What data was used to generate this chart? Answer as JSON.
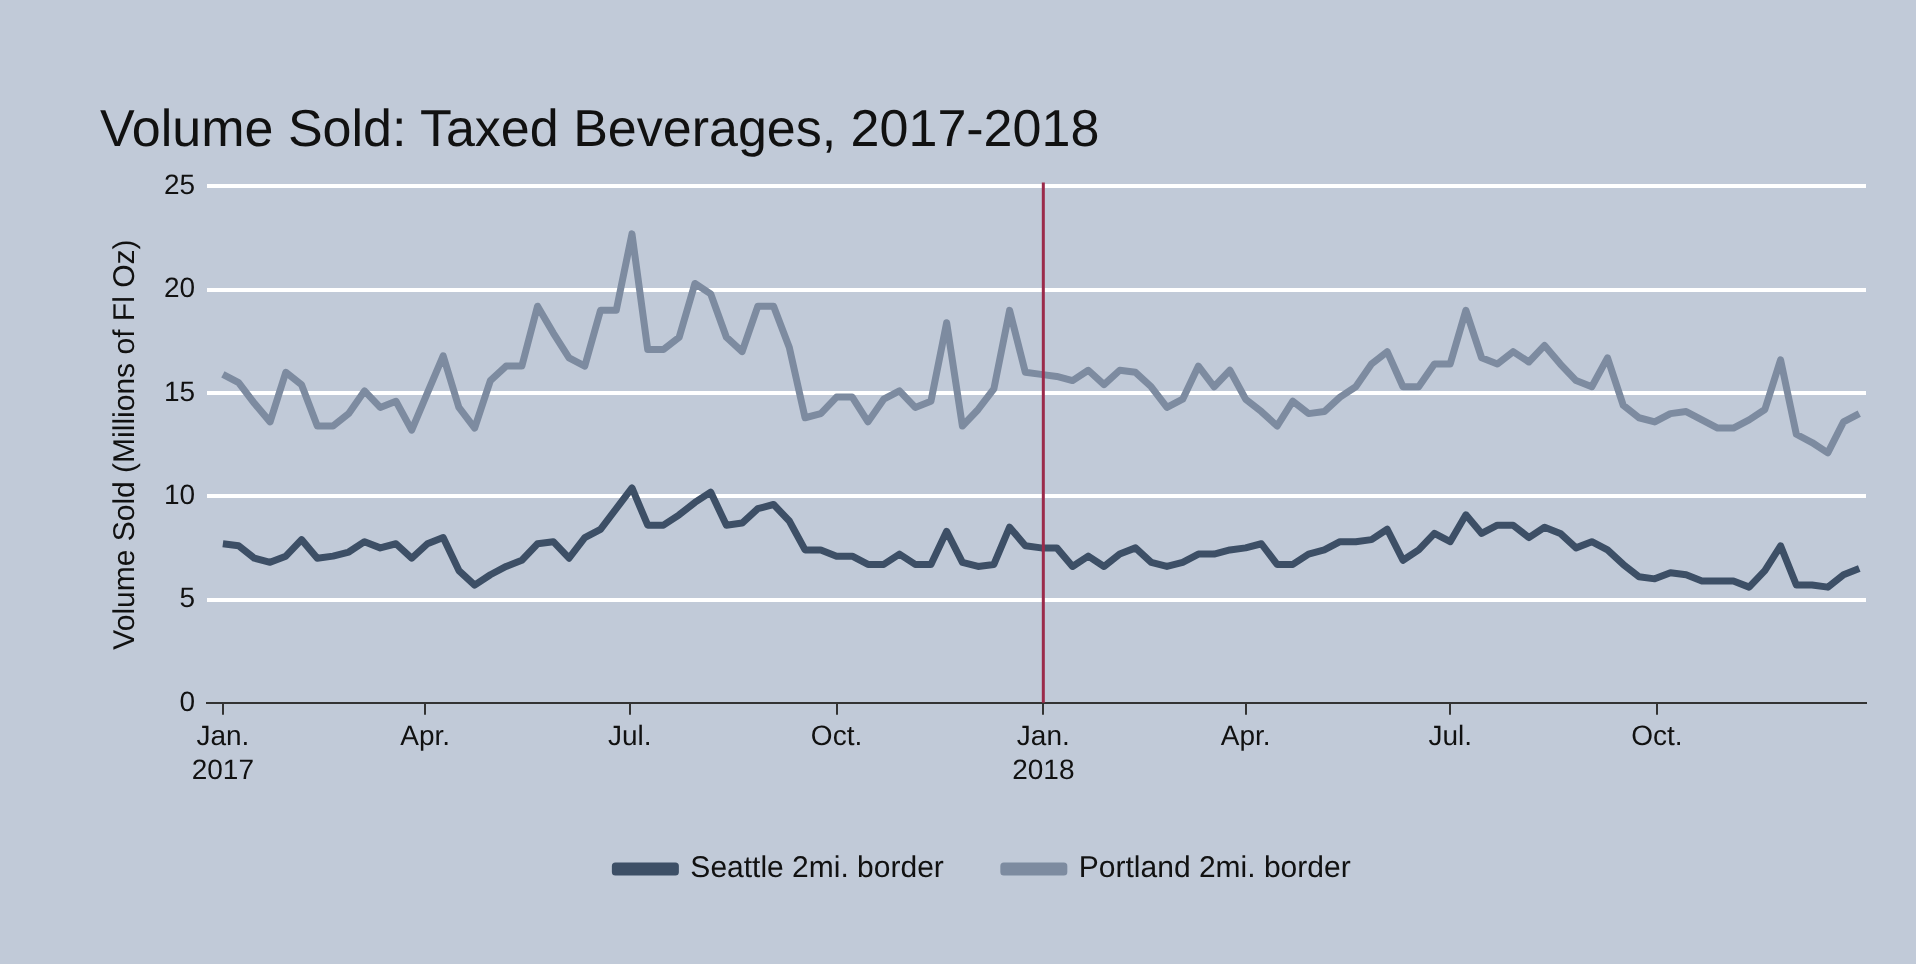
{
  "chart_data": {
    "type": "line",
    "title": "Volume Sold: Taxed Beverages, 2017-2018",
    "ylabel": "Volume Sold (Millions of Fl Oz)",
    "x": [
      "2017-01-01",
      "2017-01-08",
      "2017-01-15",
      "2017-01-22",
      "2017-01-29",
      "2017-02-05",
      "2017-02-12",
      "2017-02-19",
      "2017-02-26",
      "2017-03-05",
      "2017-03-12",
      "2017-03-19",
      "2017-03-26",
      "2017-04-02",
      "2017-04-09",
      "2017-04-16",
      "2017-04-23",
      "2017-04-30",
      "2017-05-07",
      "2017-05-14",
      "2017-05-21",
      "2017-05-28",
      "2017-06-04",
      "2017-06-11",
      "2017-06-18",
      "2017-06-25",
      "2017-07-02",
      "2017-07-09",
      "2017-07-16",
      "2017-07-23",
      "2017-07-30",
      "2017-08-06",
      "2017-08-13",
      "2017-08-20",
      "2017-08-27",
      "2017-09-03",
      "2017-09-10",
      "2017-09-17",
      "2017-09-24",
      "2017-10-01",
      "2017-10-08",
      "2017-10-15",
      "2017-10-22",
      "2017-10-29",
      "2017-11-05",
      "2017-11-12",
      "2017-11-19",
      "2017-11-26",
      "2017-12-03",
      "2017-12-10",
      "2017-12-17",
      "2017-12-24",
      "2017-12-31",
      "2018-01-07",
      "2018-01-14",
      "2018-01-21",
      "2018-01-28",
      "2018-02-04",
      "2018-02-11",
      "2018-02-18",
      "2018-02-25",
      "2018-03-04",
      "2018-03-11",
      "2018-03-18",
      "2018-03-25",
      "2018-04-01",
      "2018-04-08",
      "2018-04-15",
      "2018-04-22",
      "2018-04-29",
      "2018-05-06",
      "2018-05-13",
      "2018-05-20",
      "2018-05-27",
      "2018-06-03",
      "2018-06-10",
      "2018-06-17",
      "2018-06-24",
      "2018-07-01",
      "2018-07-08",
      "2018-07-15",
      "2018-07-22",
      "2018-07-29",
      "2018-08-05",
      "2018-08-12",
      "2018-08-19",
      "2018-08-26",
      "2018-09-02",
      "2018-09-09",
      "2018-09-16",
      "2018-09-23",
      "2018-09-30",
      "2018-10-07",
      "2018-10-14",
      "2018-10-21",
      "2018-10-28",
      "2018-11-04",
      "2018-11-11",
      "2018-11-18",
      "2018-11-25",
      "2018-12-02",
      "2018-12-09",
      "2018-12-16",
      "2018-12-23",
      "2018-12-30"
    ],
    "series": [
      {
        "name": "Seattle 2mi. border",
        "color": "#3d4f66",
        "values": [
          7.7,
          7.6,
          7.0,
          6.8,
          7.1,
          7.9,
          7.0,
          7.1,
          7.3,
          7.8,
          7.5,
          7.7,
          7.0,
          7.7,
          8.0,
          6.4,
          5.7,
          6.2,
          6.6,
          6.9,
          7.7,
          7.8,
          7.0,
          8.0,
          8.4,
          9.4,
          10.4,
          8.6,
          8.6,
          9.1,
          9.7,
          10.2,
          8.6,
          8.7,
          9.4,
          9.6,
          8.8,
          7.4,
          7.4,
          7.1,
          7.1,
          6.7,
          6.7,
          7.2,
          6.7,
          6.7,
          8.3,
          6.8,
          6.6,
          6.7,
          8.5,
          7.6,
          7.5,
          7.5,
          6.6,
          7.1,
          6.6,
          7.2,
          7.5,
          6.8,
          6.6,
          6.8,
          7.2,
          7.2,
          7.4,
          7.5,
          7.7,
          6.7,
          6.7,
          7.2,
          7.4,
          7.8,
          7.8,
          7.9,
          8.4,
          6.9,
          7.4,
          8.2,
          7.8,
          9.1,
          8.2,
          8.6,
          8.6,
          8.0,
          8.5,
          8.2,
          7.5,
          7.8,
          7.4,
          6.7,
          6.1,
          6.0,
          6.3,
          6.2,
          5.9,
          5.9,
          5.9,
          5.6,
          6.4,
          7.6,
          5.7,
          5.7,
          5.6,
          6.2,
          6.5
        ]
      },
      {
        "name": "Portland 2mi. border",
        "color": "#7d8ba0",
        "values": [
          15.9,
          15.5,
          14.5,
          13.6,
          16.0,
          15.4,
          13.4,
          13.4,
          14.0,
          15.1,
          14.3,
          14.6,
          13.2,
          15.0,
          16.8,
          14.3,
          13.3,
          15.6,
          16.3,
          16.3,
          19.2,
          17.9,
          16.7,
          16.3,
          19.0,
          19.0,
          22.7,
          17.1,
          17.1,
          17.7,
          20.3,
          19.8,
          17.7,
          17.0,
          19.2,
          19.2,
          17.2,
          13.8,
          14.0,
          14.8,
          14.8,
          13.6,
          14.7,
          15.1,
          14.3,
          14.6,
          18.4,
          13.4,
          14.2,
          15.2,
          19.0,
          16.0,
          15.9,
          15.8,
          15.6,
          16.1,
          15.4,
          16.1,
          16.0,
          15.3,
          14.3,
          14.7,
          16.3,
          15.3,
          16.1,
          14.7,
          14.1,
          13.4,
          14.6,
          14.0,
          14.1,
          14.8,
          15.3,
          16.4,
          17.0,
          15.3,
          15.3,
          16.4,
          16.4,
          19.0,
          16.7,
          16.4,
          17.0,
          16.5,
          17.3,
          16.4,
          15.6,
          15.3,
          16.7,
          14.4,
          13.8,
          13.6,
          14.0,
          14.1,
          13.7,
          13.3,
          13.3,
          13.7,
          14.2,
          16.6,
          13.0,
          12.6,
          12.1,
          13.6,
          14.0
        ]
      }
    ],
    "xlim": [
      "2016-12-25",
      "2019-01-02"
    ],
    "xticks": [
      {
        "value": "2017-01-01",
        "label": "Jan.\n2017"
      },
      {
        "value": "2017-04-01",
        "label": "Apr."
      },
      {
        "value": "2017-07-01",
        "label": "Jul."
      },
      {
        "value": "2017-10-01",
        "label": "Oct."
      },
      {
        "value": "2018-01-01",
        "label": "Jan.\n2018"
      },
      {
        "value": "2018-04-01",
        "label": "Apr."
      },
      {
        "value": "2018-07-01",
        "label": "Jul."
      },
      {
        "value": "2018-10-01",
        "label": "Oct."
      }
    ],
    "ylim": [
      0,
      25
    ],
    "yticks": [
      0,
      5,
      10,
      15,
      20,
      25
    ],
    "grid": "y",
    "legend": "bottom",
    "marker": "none",
    "line_style": "solid",
    "ref_lines": [
      {
        "axis": "x",
        "value": "2018-01-01",
        "color": "#9b2a4a"
      }
    ]
  }
}
